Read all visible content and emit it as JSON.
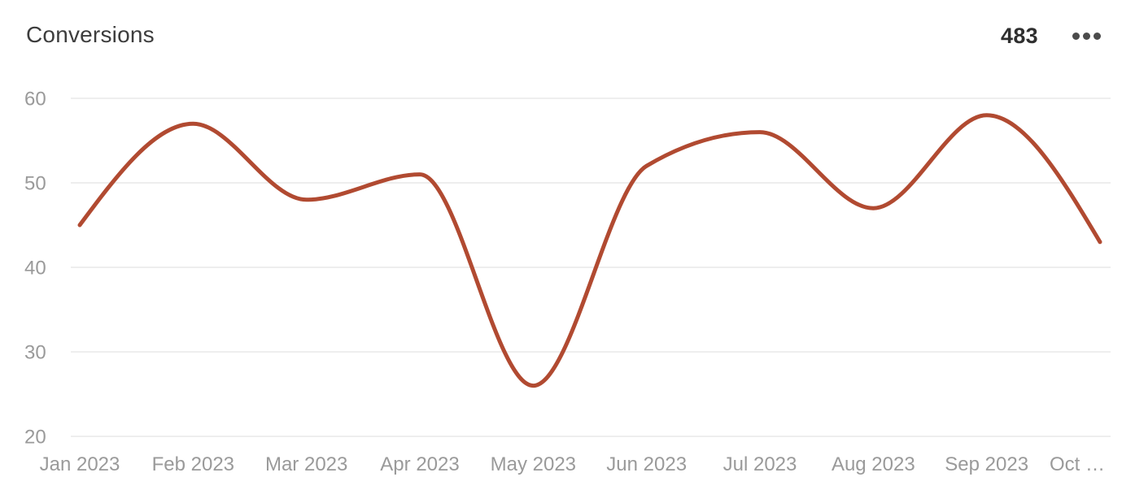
{
  "header": {
    "title": "Conversions",
    "total": "483"
  },
  "colors": {
    "background": "#ffffff",
    "line": "#b14a31",
    "grid": "#eeeeee",
    "axis_label": "#9a9a9a",
    "title_text": "#3d3d3d",
    "total_text": "#2f2f2f",
    "menu_dots": "#4b4b4b"
  },
  "chart_data": {
    "type": "line",
    "title": "Conversions",
    "categories": [
      "Jan 2023",
      "Feb 2023",
      "Mar 2023",
      "Apr 2023",
      "May 2023",
      "Jun 2023",
      "Jul 2023",
      "Aug 2023",
      "Sep 2023",
      "Oct 2023"
    ],
    "x_tick_display": [
      "Jan 2023",
      "Feb 2023",
      "Mar 2023",
      "Apr 2023",
      "May 2023",
      "Jun 2023",
      "Jul 2023",
      "Aug 2023",
      "Sep 2023",
      "Oct …"
    ],
    "values": [
      45,
      57,
      48,
      51,
      26,
      52,
      56,
      47,
      58,
      43
    ],
    "total": 483,
    "xlabel": "",
    "ylabel": "",
    "ylim": [
      20,
      60
    ],
    "yticks": [
      60,
      50,
      40,
      30,
      20
    ],
    "grid": "horizontal",
    "legend": "none",
    "curve": "monotone",
    "line_width": 5
  }
}
